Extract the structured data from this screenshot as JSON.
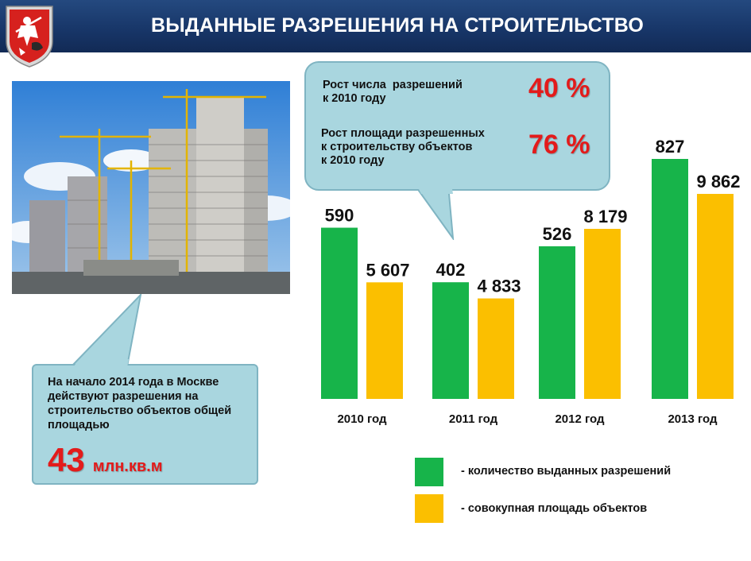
{
  "header": {
    "title": "ВЫДАННЫЕ РАЗРЕШЕНИЯ НА СТРОИТЕЛЬСТВО"
  },
  "stats": [
    {
      "label": "Рост числа  разрешений\nк 2010 году",
      "value": "40 %"
    },
    {
      "label": "Рост площади разрешенных\nк строительству объектов\nк 2010 году",
      "value": "76 %"
    }
  ],
  "note": {
    "text": "На начало 2014 года в Москве действуют разрешения на строительство объектов общей площадью",
    "value": "43",
    "unit": "млн.кв.м"
  },
  "colors": {
    "header": "#173567",
    "green": "#17b44a",
    "yellow": "#fbbf00",
    "accent": "#e31b1b",
    "bubble": "#a9d6df"
  },
  "chart_data": {
    "type": "bar",
    "categories": [
      "2010 год",
      "2011 год",
      "2012 год",
      "2013 год"
    ],
    "series": [
      {
        "name": "- количество выданных разрешений",
        "values": [
          590,
          402,
          526,
          827
        ],
        "labels": [
          "590",
          "402",
          "526",
          "827"
        ],
        "color": "#17b44a"
      },
      {
        "name": "- совокупная площадь объектов",
        "values": [
          5607,
          4833,
          8179,
          9862
        ],
        "labels": [
          "5 607",
          "4 833",
          "8 179",
          "9 862"
        ],
        "color": "#fbbf00"
      }
    ],
    "legend": "bottom-right",
    "grid": false
  }
}
